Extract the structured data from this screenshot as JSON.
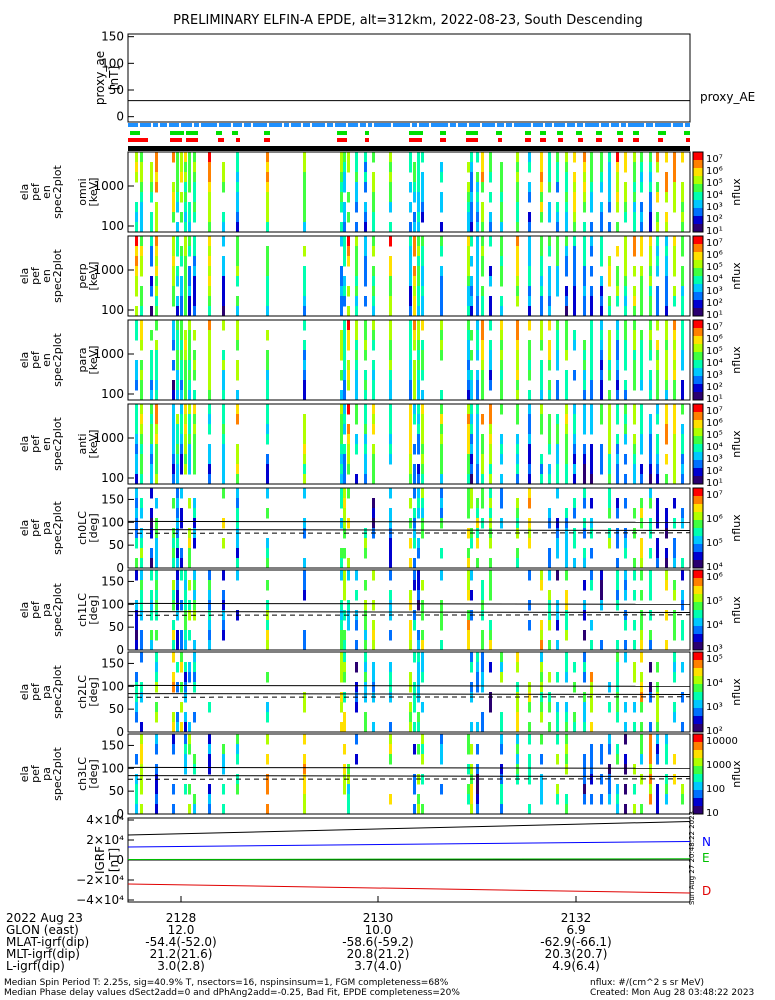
{
  "chart_data": {
    "type": "heatmap",
    "title": "PRELIMINARY ELFIN-A EPDE, alt=312km, 2022-08-23, South Descending",
    "proxy_panel": {
      "ylabel": "proxy_ae\n[nT]",
      "yticks": [
        "150",
        "100",
        "50",
        "0"
      ],
      "ylim": [
        -10,
        155
      ],
      "series_label": "proxy_AE",
      "value": 30
    },
    "spectrogram_panels": [
      {
        "ylabel": [
          "ela",
          "pef",
          "en",
          "spec2plot",
          "omni",
          "[keV]"
        ],
        "yticks": [
          "1000",
          "100"
        ],
        "colorbar_labels": [
          "10⁷",
          "10⁶",
          "10⁵",
          "10⁴",
          "10³",
          "10²",
          "10¹"
        ],
        "colorbar_title": "nflux"
      },
      {
        "ylabel": [
          "ela",
          "pef",
          "en",
          "spec2plot",
          "perp",
          "[keV]"
        ],
        "yticks": [
          "1000",
          "100"
        ],
        "colorbar_labels": [
          "10⁷",
          "10⁶",
          "10⁵",
          "10⁴",
          "10³",
          "10²",
          "10¹"
        ],
        "colorbar_title": "nflux"
      },
      {
        "ylabel": [
          "ela",
          "pef",
          "en",
          "spec2plot",
          "para",
          "[keV]"
        ],
        "yticks": [
          "1000",
          "100"
        ],
        "colorbar_labels": [
          "10⁷",
          "10⁶",
          "10⁵",
          "10⁴",
          "10³",
          "10²",
          "10¹"
        ],
        "colorbar_title": "nflux"
      },
      {
        "ylabel": [
          "ela",
          "pef",
          "en",
          "spec2plot",
          "anti",
          "[keV]"
        ],
        "yticks": [
          "1000",
          "100"
        ],
        "colorbar_labels": [
          "10⁷",
          "10⁶",
          "10⁵",
          "10⁴",
          "10³",
          "10²",
          "10¹"
        ],
        "colorbar_title": "nflux"
      }
    ],
    "pitch_panels": [
      {
        "ylabel": [
          "ela",
          "pef",
          "pa",
          "spec2plot",
          "ch0LC",
          "[deg]"
        ],
        "yticks": [
          "150",
          "100",
          "50",
          "0"
        ],
        "colorbar_labels": [
          "10⁷",
          "10⁶",
          "10⁵",
          "10⁴"
        ],
        "colorbar_title": "nflux"
      },
      {
        "ylabel": [
          "ela",
          "pef",
          "pa",
          "spec2plot",
          "ch1LC",
          "[deg]"
        ],
        "yticks": [
          "150",
          "100",
          "50",
          "0"
        ],
        "colorbar_labels": [
          "10⁶",
          "10⁵",
          "10⁴",
          "10³"
        ],
        "colorbar_title": "nflux"
      },
      {
        "ylabel": [
          "ela",
          "pef",
          "pa",
          "spec2plot",
          "ch2LC",
          "[deg]"
        ],
        "yticks": [
          "150",
          "100",
          "50",
          "0"
        ],
        "colorbar_labels": [
          "10⁵",
          "10⁴",
          "10³",
          "10²"
        ],
        "colorbar_title": "nflux"
      },
      {
        "ylabel": [
          "ela",
          "pef",
          "pa",
          "spec2plot",
          "ch3LC",
          "[deg]"
        ],
        "yticks": [
          "150",
          "100",
          "50",
          "0"
        ],
        "colorbar_labels": [
          "10000",
          "1000",
          "100",
          "10"
        ],
        "colorbar_title": "nflux"
      }
    ],
    "igrf_panel": {
      "ylabel": "IGRF\n[nT]",
      "yticks": [
        "4×10⁴",
        "2×10⁴",
        "0",
        "−2×10⁴",
        "−4×10⁴"
      ],
      "ylim": [
        -42000,
        42000
      ],
      "legend": [
        "N",
        "E",
        "D"
      ],
      "series_colors": [
        "#0000ff",
        "#00c000",
        "#e00000"
      ],
      "N": [
        13000,
        18500
      ],
      "E": [
        500,
        1200
      ],
      "D": [
        -24000,
        -33000
      ],
      "total": [
        25000,
        38500
      ],
      "side_text": "Sun Aug 27 20:48:22 2023"
    },
    "time_axis": {
      "date_label": "2022 Aug 23",
      "ticks": [
        {
          "time": "2128",
          "glon": "12.0",
          "mlat": "-54.4(-52.0)",
          "mlt": "21.2(21.6)",
          "l": "3.0(2.8)"
        },
        {
          "time": "2130",
          "glon": "10.0",
          "mlat": "-58.6(-59.2)",
          "mlt": "20.8(21.2)",
          "l": "3.7(4.0)"
        },
        {
          "time": "2132",
          "glon": "6.9",
          "mlat": "-62.9(-66.1)",
          "mlt": "20.3(20.7)",
          "l": "4.9(6.4)"
        }
      ],
      "row_labels": [
        "GLON (east)",
        "MLAT-igrf(dip)",
        "MLT-igrf(dip)",
        "L-igrf(dip)"
      ]
    },
    "colors": {
      "status_blue": "#1e90ff",
      "status_green": "#00e000",
      "status_red": "#ff0000"
    }
  },
  "footer": {
    "line1": "Median Spin Period T: 2.25s, sig=40.9% T, nsectors=16, nspinsinsum=1, FGM completeness=68%",
    "line2": "Median Phase delay values dSect2add=0 and dPhAng2add=-0.25, Bad Fit, EPDE completeness=20%",
    "right1": "nflux: #/(cm^2 s sr MeV)",
    "right2": "Created: Mon Aug 28 03:48:22 2023"
  }
}
